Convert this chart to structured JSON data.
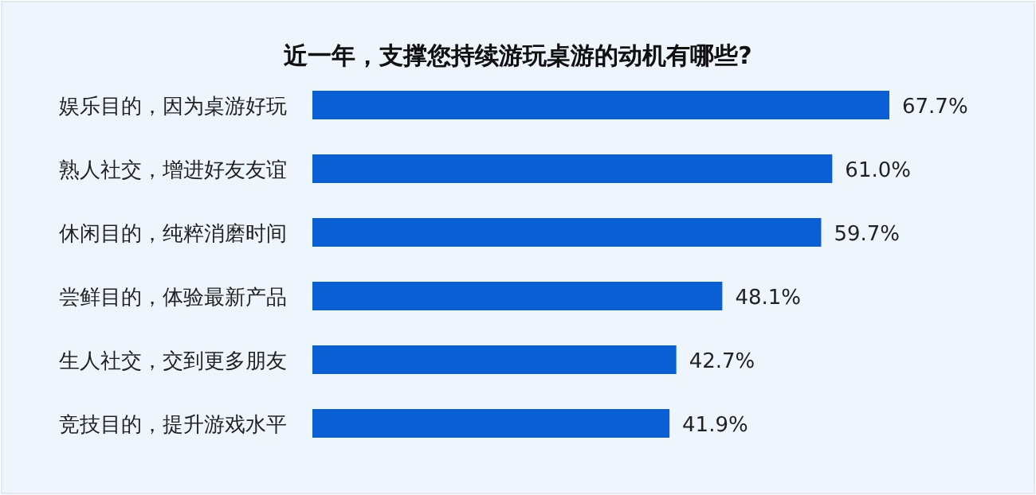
{
  "chart_data": {
    "type": "bar",
    "orientation": "horizontal",
    "title": "近一年，支撑您持续游玩桌游的动机有哪些?",
    "categories": [
      "娱乐目的，因为桌游好玩",
      "熟人社交，增进好友友谊",
      "休闲目的，纯粹消磨时间",
      "尝鲜目的，体验最新产品",
      "生人社交，交到更多朋友",
      "竞技目的，提升游戏水平"
    ],
    "values": [
      67.7,
      61.0,
      59.7,
      48.1,
      42.7,
      41.9
    ],
    "value_labels": [
      "67.7%",
      "61.0%",
      "59.7%",
      "48.1%",
      "42.7%",
      "41.9%"
    ],
    "color": "#0a5fd4"
  }
}
